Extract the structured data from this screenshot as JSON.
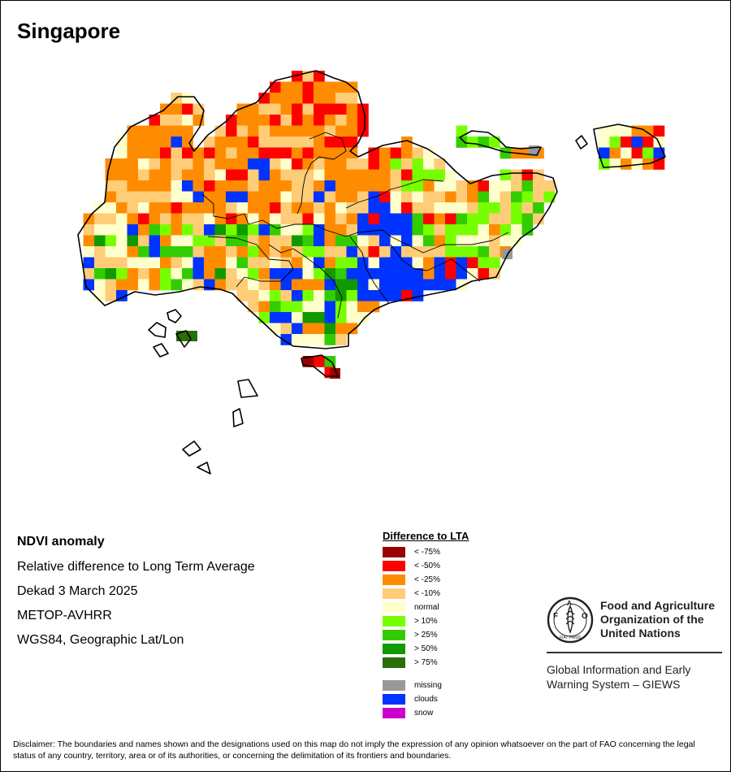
{
  "title": "Singapore",
  "info": {
    "heading": "NDVI anomaly",
    "line1": "Relative difference to Long Term Average",
    "line2": "Dekad 3 March 2025",
    "line3": "METOP-AVHRR",
    "line4": "WGS84, Geographic Lat/Lon"
  },
  "legend": {
    "title": "Difference to LTA",
    "items": [
      {
        "label": "< -75%",
        "color": "#990000"
      },
      {
        "label": "< -50%",
        "color": "#ff0000"
      },
      {
        "label": "< -25%",
        "color": "#ff8c00"
      },
      {
        "label": "< -10%",
        "color": "#ffcc77"
      },
      {
        "label": "normal",
        "color": "#ffffcc"
      },
      {
        "label": "> 10%",
        "color": "#77ff00"
      },
      {
        "label": "> 25%",
        "color": "#33cc00"
      },
      {
        "label": "> 50%",
        "color": "#119900"
      },
      {
        "label": "> 75%",
        "color": "#2a6e0a"
      }
    ],
    "extra": [
      {
        "label": "missing",
        "color": "#999999"
      },
      {
        "label": "clouds",
        "color": "#0033ff"
      },
      {
        "label": "snow",
        "color": "#cc00cc"
      }
    ]
  },
  "fao": {
    "logo_text": "FAO",
    "line1": "Food and Agriculture",
    "line2": "Organization of the",
    "line3": "United Nations"
  },
  "giews": {
    "line1": "Global Information and Early",
    "line2": "Warning System – GIEWS"
  },
  "disclaimer": "Disclaimer: The boundaries and names shown and the designations used on this map do not imply the expression of any opinion whatsoever on the part of FAO concerning the legal status of any country, territory, area or of its authorities, or concerning the delimitation of its frontiers and boundaries."
}
